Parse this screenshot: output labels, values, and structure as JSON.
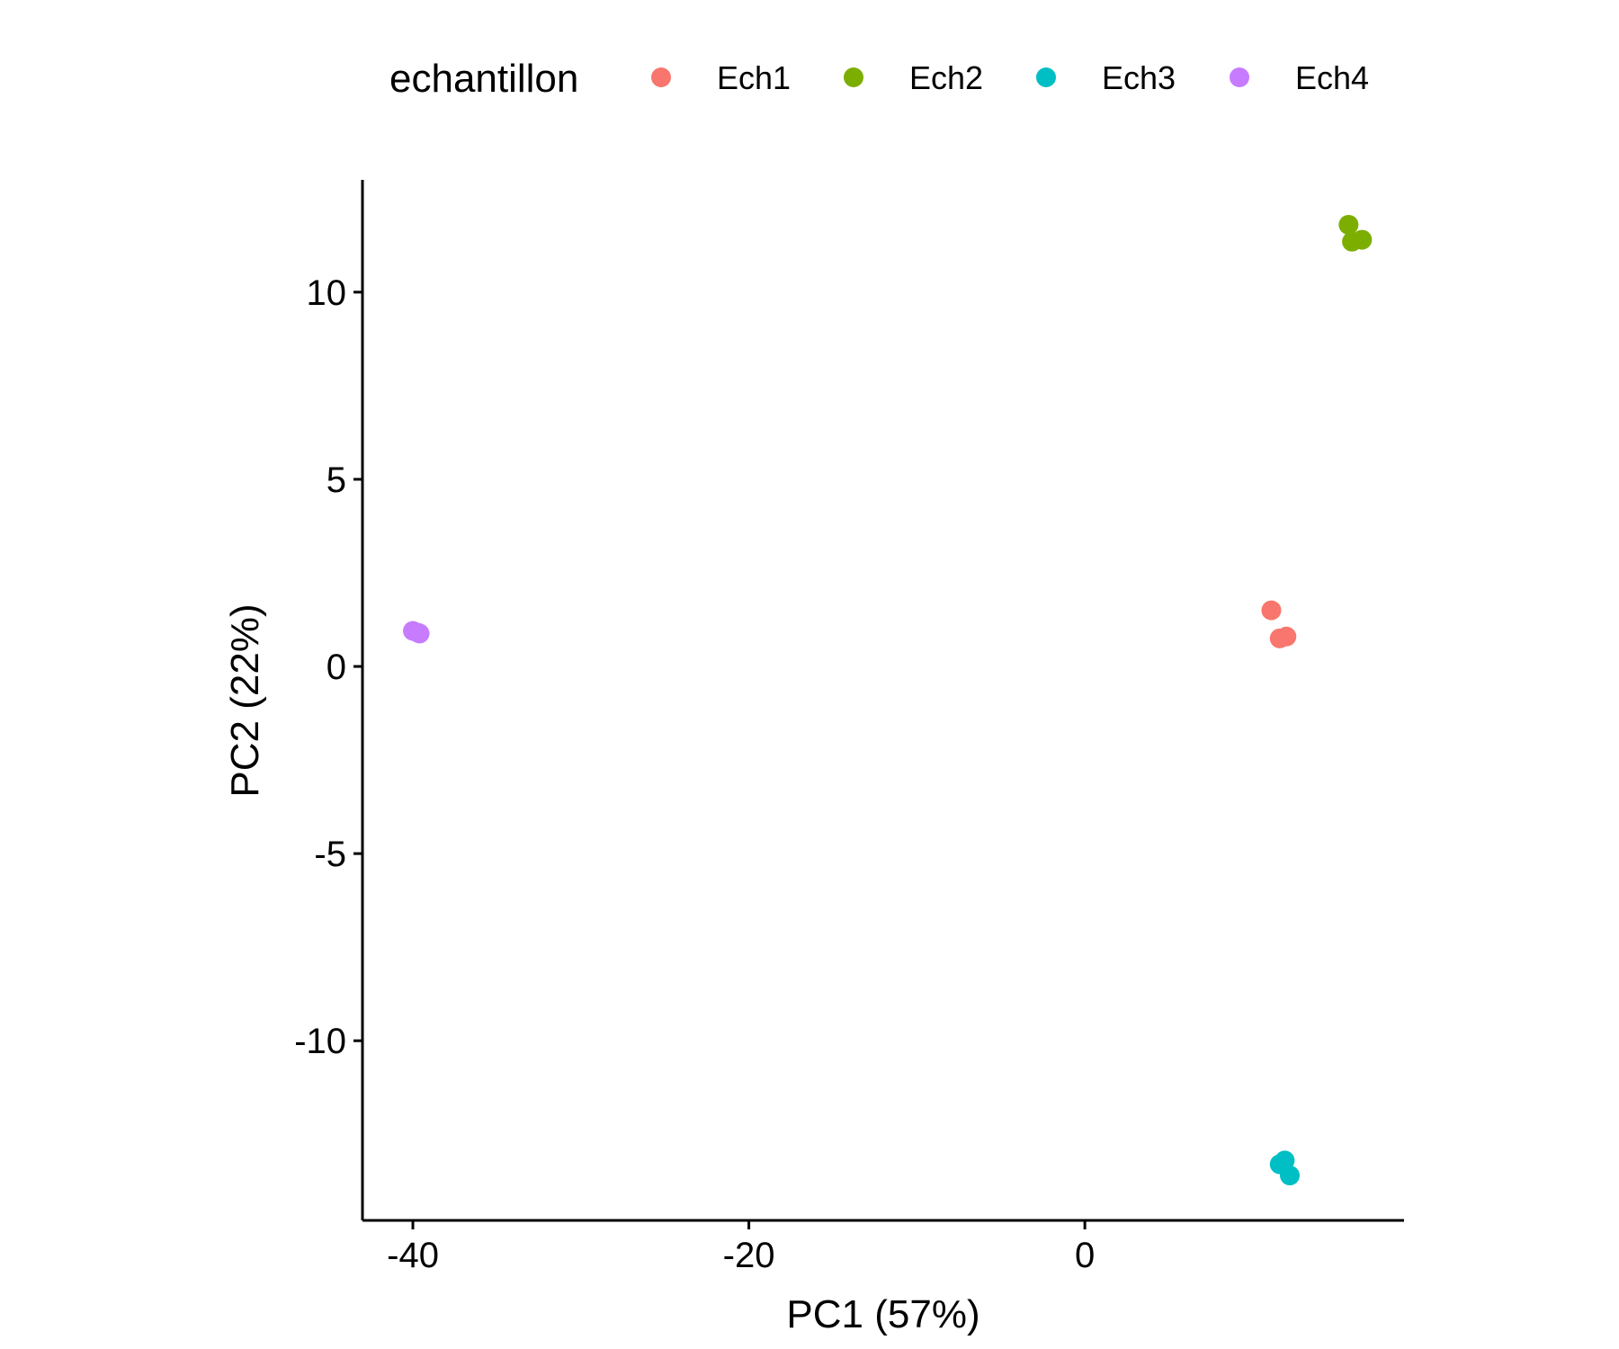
{
  "chart_data": {
    "type": "scatter",
    "xlabel": "PC1 (57%)",
    "ylabel": "PC2 (22%)",
    "xlim": [
      -43,
      19
    ],
    "ylim": [
      -14.8,
      13
    ],
    "x_ticks": [
      -40,
      -20,
      0
    ],
    "x_tick_labels": [
      "-40",
      "-20",
      "0"
    ],
    "y_ticks": [
      -10,
      -5,
      0,
      5,
      10
    ],
    "y_tick_labels": [
      "-10",
      "-5",
      "0",
      "5",
      "10"
    ],
    "grid": false,
    "legend": {
      "title": "echantillon",
      "position": "top"
    },
    "series": [
      {
        "name": "Ech1",
        "color": "#F8766D",
        "points": [
          [
            11.1,
            1.5
          ],
          [
            11.6,
            0.75
          ],
          [
            12.0,
            0.8
          ]
        ]
      },
      {
        "name": "Ech2",
        "color": "#7CAE00",
        "points": [
          [
            15.7,
            11.8
          ],
          [
            15.9,
            11.35
          ],
          [
            16.5,
            11.4
          ]
        ]
      },
      {
        "name": "Ech3",
        "color": "#00BFC4",
        "points": [
          [
            11.6,
            -13.3
          ],
          [
            11.9,
            -13.2
          ],
          [
            12.2,
            -13.6
          ]
        ]
      },
      {
        "name": "Ech4",
        "color": "#C77CFF",
        "points": [
          [
            -40.0,
            0.95
          ],
          [
            -39.7,
            0.9
          ],
          [
            -39.6,
            0.88
          ]
        ]
      }
    ]
  }
}
